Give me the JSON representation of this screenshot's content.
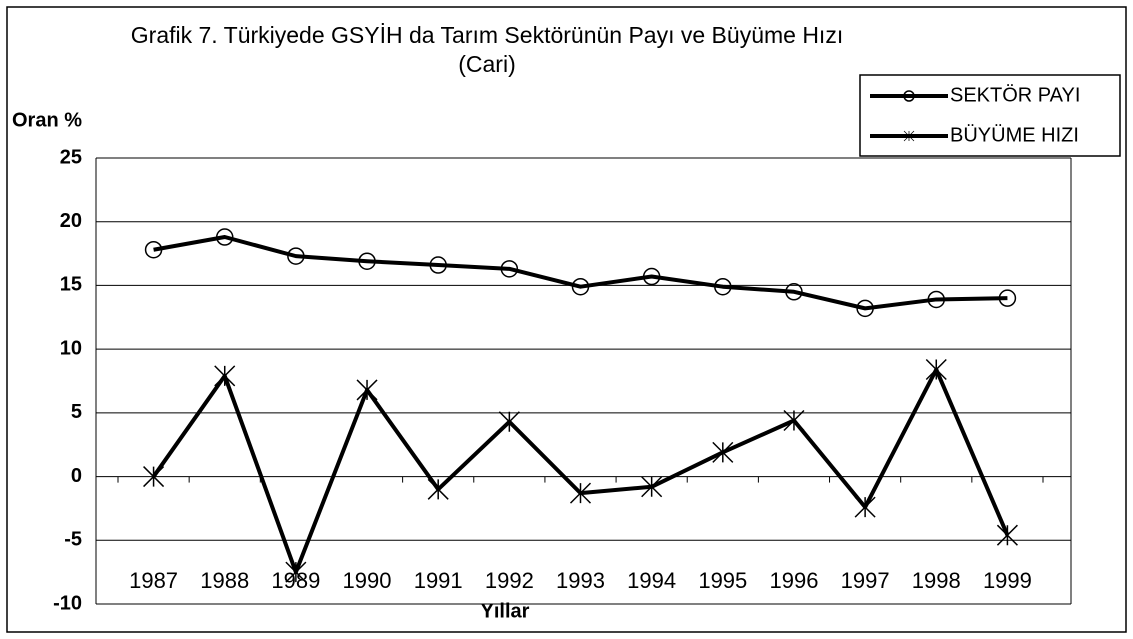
{
  "chart_data": {
    "type": "line",
    "title": "Grafik 7. Türkiyede GSYİH da Tarım Sektörünün Payı ve Büyüme Hızı",
    "subtitle": "(Cari)",
    "y_label": "Oran %",
    "x_label": "Yıllar",
    "categories": [
      "1987",
      "1988",
      "1989",
      "1990",
      "1991",
      "1992",
      "1993",
      "1994",
      "1995",
      "1996",
      "1997",
      "1998",
      "1999"
    ],
    "series": [
      {
        "name": "SEKTÖR PAYI",
        "color": "#000000",
        "marker": "circle",
        "values": [
          17.8,
          18.8,
          17.3,
          16.9,
          16.6,
          16.3,
          14.9,
          15.7,
          14.9,
          14.5,
          13.2,
          13.9,
          14.0
        ]
      },
      {
        "name": "BÜYÜME HIZI",
        "color": "#000000",
        "marker": "asterisk",
        "values": [
          0,
          7.9,
          -7.5,
          6.8,
          -1.0,
          4.3,
          -1.3,
          -0.8,
          1.9,
          4.4,
          -2.4,
          8.4,
          -4.6
        ]
      }
    ],
    "ylim": [
      -10,
      25
    ],
    "yticks": [
      -10,
      -5,
      0,
      5,
      10,
      15,
      20,
      25
    ],
    "grid": true,
    "legend": "top-right"
  }
}
